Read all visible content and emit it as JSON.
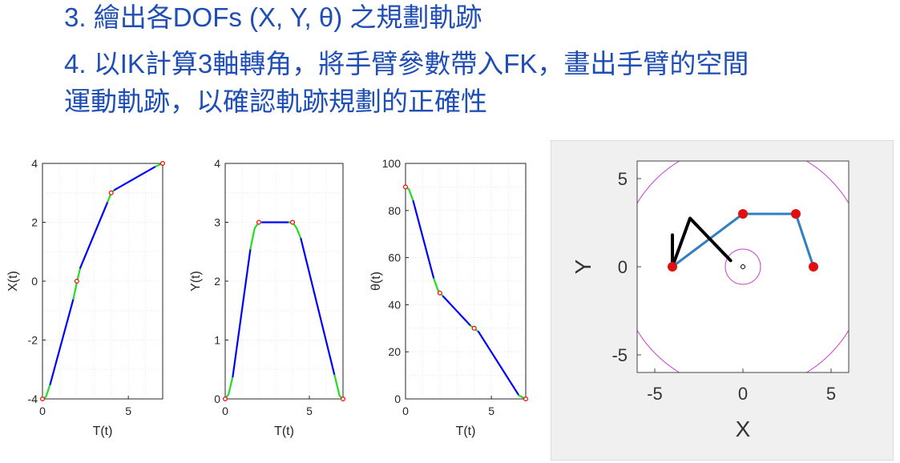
{
  "bullets": [
    {
      "num": "3.",
      "text": "繪出各DOFs (X, Y, θ) 之規劃軌跡"
    },
    {
      "num": "4.",
      "text": "以IK計算3軸轉角，將手臂參數帶入FK，畫出手臂的空間"
    },
    {
      "num": "",
      "text": "運動軌跡，以確認軌跡規劃的正確性"
    }
  ],
  "colors": {
    "text": "#1f4fb5",
    "linear_segment": "#0000ff",
    "blend_segment": "#22dd22",
    "via_point": "#ff0000",
    "arm_links": "#2f7fc1",
    "arm_trace": "#000000",
    "workspace_circle": "#cc44cc",
    "joint_marker": "#dd1111"
  },
  "chart_data": [
    {
      "type": "line",
      "name": "x-plot",
      "xlabel": "T(t)",
      "ylabel": "X(t)",
      "xlim": [
        0,
        7
      ],
      "ylim": [
        -4,
        4
      ],
      "xticks": [
        "0",
        "5"
      ],
      "yticks": [
        "-4",
        "-2",
        "0",
        "2",
        "4"
      ],
      "grid": true,
      "via_points": {
        "x": [
          0,
          2,
          4,
          7
        ],
        "y": [
          -4,
          0,
          3,
          4
        ]
      },
      "segments": [
        {
          "kind": "blend",
          "x": [
            0,
            0.2,
            0.45
          ],
          "y": [
            -4,
            -3.93,
            -3.5
          ]
        },
        {
          "kind": "linear",
          "x": [
            0.45,
            1.8
          ],
          "y": [
            -3.5,
            -0.6
          ]
        },
        {
          "kind": "blend",
          "x": [
            1.8,
            2.0,
            2.2
          ],
          "y": [
            -0.6,
            -0.05,
            0.45
          ]
        },
        {
          "kind": "linear",
          "x": [
            2.2,
            3.8
          ],
          "y": [
            0.45,
            2.7
          ]
        },
        {
          "kind": "blend",
          "x": [
            3.8,
            4.0,
            4.2
          ],
          "y": [
            2.7,
            3.0,
            3.1
          ]
        },
        {
          "kind": "linear",
          "x": [
            4.2,
            6.6
          ],
          "y": [
            3.1,
            3.9
          ]
        },
        {
          "kind": "blend",
          "x": [
            6.6,
            7.0
          ],
          "y": [
            3.9,
            4.0
          ]
        }
      ]
    },
    {
      "type": "line",
      "name": "y-plot",
      "xlabel": "T(t)",
      "ylabel": "Y(t)",
      "xlim": [
        0,
        7
      ],
      "ylim": [
        0,
        4
      ],
      "xticks": [
        "0",
        "5"
      ],
      "yticks": [
        "0",
        "1",
        "2",
        "3",
        "4"
      ],
      "grid": true,
      "via_points": {
        "x": [
          0,
          2,
          4,
          7
        ],
        "y": [
          0,
          3,
          3,
          0
        ]
      },
      "segments": [
        {
          "kind": "blend",
          "x": [
            0,
            0.2,
            0.45
          ],
          "y": [
            0,
            0.08,
            0.38
          ]
        },
        {
          "kind": "linear",
          "x": [
            0.45,
            1.5
          ],
          "y": [
            0.38,
            2.55
          ]
        },
        {
          "kind": "blend",
          "x": [
            1.5,
            1.75,
            2.0,
            2.2
          ],
          "y": [
            2.55,
            2.9,
            3.0,
            3.0
          ]
        },
        {
          "kind": "linear",
          "x": [
            2.2,
            3.8
          ],
          "y": [
            3.0,
            3.0
          ]
        },
        {
          "kind": "blend",
          "x": [
            3.8,
            4.0,
            4.25,
            4.5
          ],
          "y": [
            3.0,
            3.0,
            2.9,
            2.72
          ]
        },
        {
          "kind": "linear",
          "x": [
            4.5,
            6.5
          ],
          "y": [
            2.72,
            0.4
          ]
        },
        {
          "kind": "blend",
          "x": [
            6.5,
            6.8,
            7.0
          ],
          "y": [
            0.4,
            0.05,
            0
          ]
        }
      ]
    },
    {
      "type": "line",
      "name": "theta-plot",
      "xlabel": "T(t)",
      "ylabel": "θ(t)",
      "xlim": [
        0,
        7
      ],
      "ylim": [
        0,
        100
      ],
      "xticks": [
        "0",
        "5"
      ],
      "yticks": [
        "0",
        "20",
        "40",
        "60",
        "80",
        "100"
      ],
      "grid": true,
      "via_points": {
        "x": [
          0,
          2,
          4,
          7
        ],
        "y": [
          90,
          45,
          30,
          0
        ]
      },
      "segments": [
        {
          "kind": "blend",
          "x": [
            0,
            0.2,
            0.45
          ],
          "y": [
            90,
            89,
            84
          ]
        },
        {
          "kind": "linear",
          "x": [
            0.45,
            1.65
          ],
          "y": [
            84,
            51
          ]
        },
        {
          "kind": "blend",
          "x": [
            1.65,
            1.9,
            2.2
          ],
          "y": [
            51,
            46,
            43.5
          ]
        },
        {
          "kind": "linear",
          "x": [
            2.2,
            3.8
          ],
          "y": [
            43.5,
            31
          ]
        },
        {
          "kind": "blend",
          "x": [
            3.8,
            4.0,
            4.25
          ],
          "y": [
            31,
            30,
            28.5
          ]
        },
        {
          "kind": "linear",
          "x": [
            4.25,
            6.6
          ],
          "y": [
            28.5,
            1.5
          ]
        },
        {
          "kind": "blend",
          "x": [
            6.6,
            7.0
          ],
          "y": [
            1.5,
            0
          ]
        }
      ]
    },
    {
      "type": "scatter",
      "name": "arm-workspace",
      "xlabel": "X",
      "ylabel": "Y",
      "xlim": [
        -6,
        6
      ],
      "ylim": [
        -6,
        6
      ],
      "xticks": [
        "-5",
        "0",
        "5"
      ],
      "yticks": [
        "-5",
        "0",
        "5"
      ],
      "grid": false,
      "workspace": {
        "inner_radius": 1,
        "outer_radius": 7
      },
      "base": {
        "x": 0,
        "y": 0
      },
      "via_points": {
        "x": [
          -4,
          0,
          3,
          4
        ],
        "y": [
          0,
          3,
          3,
          0
        ]
      },
      "arm_trace": {
        "x": [
          -4,
          -3.0,
          -0.7
        ],
        "y": [
          0,
          2.75,
          0.35
        ]
      },
      "arm_trace_tip": {
        "x": [
          -4,
          -4
        ],
        "y": [
          0,
          1.8
        ]
      }
    }
  ]
}
